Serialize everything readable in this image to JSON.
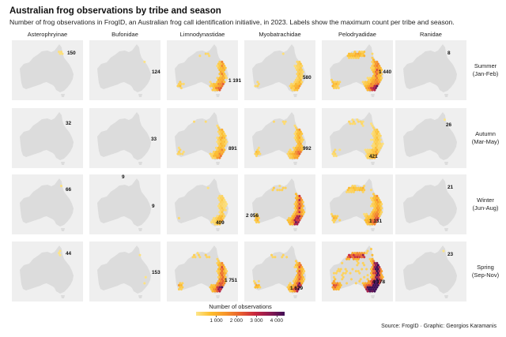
{
  "title": "Australian frog observations by tribe and season",
  "subtitle": "Number of frog observations in FrogID, an Australian frog call identification initiative, in 2023. Labels show the maximum count per tribe and season.",
  "source": "Source: FrogID · Graphic: Georgios Karamanis",
  "legend": {
    "title": "Number of observations",
    "ticks": [
      "1 000",
      "2 000",
      "3 000",
      "4 000"
    ],
    "colors": [
      "#fde68a",
      "#fdbe2d",
      "#f7952a",
      "#e8602f",
      "#c8263f",
      "#8c1a52",
      "#3f0d55"
    ]
  },
  "colors": {
    "panel_bg": "#efefef",
    "land": "#dcdcdc",
    "low": "#fde68a",
    "high": "#3f0d55"
  },
  "chart_data": {
    "type": "heatmap",
    "description_type": "faceted hexbin maps",
    "tribes": [
      "Asterophryinae",
      "Bufonidae",
      "Limnodynastidae",
      "Myobatrachidae",
      "Pelodryadidae",
      "Ranidae"
    ],
    "seasons": [
      "Summer\n(Jan-Feb)",
      "Autumn\n(Mar-May)",
      "Winter\n(Jun-Aug)",
      "Spring\n(Sep-Nov)"
    ],
    "color_scale": {
      "min": 0,
      "max": 4400,
      "ticks": [
        1000,
        2000,
        3000,
        4000
      ]
    },
    "max_counts": [
      {
        "tribe": "Asterophryinae",
        "season": "Summer",
        "max": 150,
        "label": "150"
      },
      {
        "tribe": "Bufonidae",
        "season": "Summer",
        "max": 124,
        "label": "124"
      },
      {
        "tribe": "Limnodynastidae",
        "season": "Summer",
        "max": 1191,
        "label": "1 191"
      },
      {
        "tribe": "Myobatrachidae",
        "season": "Summer",
        "max": 580,
        "label": "580"
      },
      {
        "tribe": "Pelodryadidae",
        "season": "Summer",
        "max": 1440,
        "label": "1 440"
      },
      {
        "tribe": "Ranidae",
        "season": "Summer",
        "max": 8,
        "label": "8"
      },
      {
        "tribe": "Asterophryinae",
        "season": "Autumn",
        "max": 32,
        "label": "32"
      },
      {
        "tribe": "Bufonidae",
        "season": "Autumn",
        "max": 33,
        "label": "33"
      },
      {
        "tribe": "Limnodynastidae",
        "season": "Autumn",
        "max": 891,
        "label": "891"
      },
      {
        "tribe": "Myobatrachidae",
        "season": "Autumn",
        "max": 992,
        "label": "992"
      },
      {
        "tribe": "Pelodryadidae",
        "season": "Autumn",
        "max": 421,
        "label": "421"
      },
      {
        "tribe": "Ranidae",
        "season": "Autumn",
        "max": 26,
        "label": "26"
      },
      {
        "tribe": "Asterophryinae",
        "season": "Winter",
        "max": 66,
        "label": "66"
      },
      {
        "tribe": "Bufonidae",
        "season": "Winter",
        "max": 9,
        "label": "9"
      },
      {
        "tribe": "Limnodynastidae",
        "season": "Winter",
        "max": 409,
        "label": "409"
      },
      {
        "tribe": "Myobatrachidae",
        "season": "Winter",
        "max": 2056,
        "label": "2 056"
      },
      {
        "tribe": "Pelodryadidae",
        "season": "Winter",
        "max": 1131,
        "label": "1 131"
      },
      {
        "tribe": "Ranidae",
        "season": "Winter",
        "max": 21,
        "label": "21"
      },
      {
        "tribe": "Asterophryinae",
        "season": "Spring",
        "max": 44,
        "label": "44"
      },
      {
        "tribe": "Bufonidae",
        "season": "Spring",
        "max": 153,
        "label": "153"
      },
      {
        "tribe": "Limnodynastidae",
        "season": "Spring",
        "max": 1751,
        "label": "1 751"
      },
      {
        "tribe": "Myobatrachidae",
        "season": "Spring",
        "max": 1679,
        "label": "1 679"
      },
      {
        "tribe": "Pelodryadidae",
        "season": "Spring",
        "max": 4178,
        "label": "4 178"
      },
      {
        "tribe": "Ranidae",
        "season": "Spring",
        "max": 23,
        "label": "23"
      }
    ],
    "extra_labels": [
      {
        "tribe": "Bufonidae",
        "season": "Winter",
        "label": "9"
      }
    ]
  }
}
